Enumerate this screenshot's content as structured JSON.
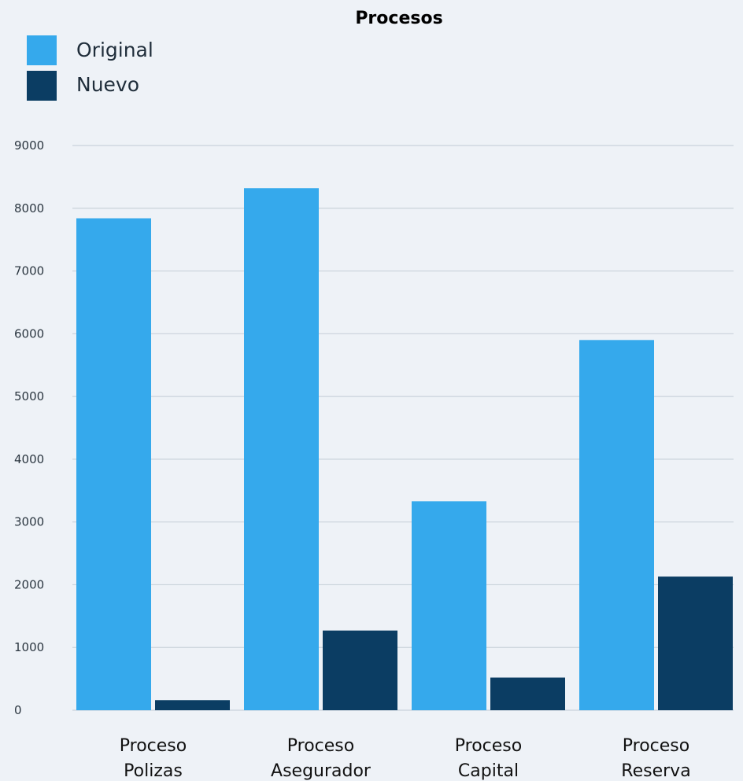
{
  "chart_data": {
    "type": "bar",
    "title": "Procesos",
    "categories": [
      [
        "Proceso",
        "Polizas"
      ],
      [
        "Proceso",
        "Asegurador"
      ],
      [
        "Proceso",
        "Capital"
      ],
      [
        "Proceso",
        "Reserva"
      ]
    ],
    "series": [
      {
        "name": "Original",
        "values": [
          7840,
          8320,
          3330,
          5900
        ],
        "color": "#35a9ec"
      },
      {
        "name": "Nuevo",
        "values": [
          160,
          1270,
          520,
          2130
        ],
        "color": "#0b3d63"
      }
    ],
    "yticks": [
      "0",
      "1000",
      "2000",
      "3000",
      "4000",
      "5000",
      "6000",
      "7000",
      "8000",
      "9000"
    ],
    "ylim": [
      0,
      9000
    ],
    "grid": true,
    "legend_position": "top-left"
  }
}
